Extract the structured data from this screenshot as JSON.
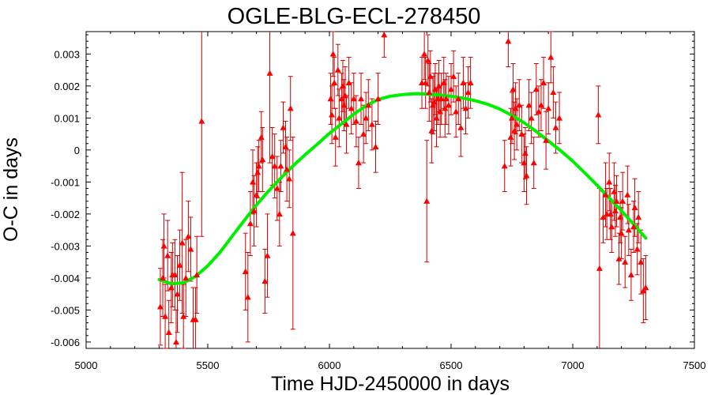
{
  "chart_data": {
    "type": "scatter",
    "title": "OGLE-BLG-ECL-278450",
    "xlabel": "Time HJD-2450000 in days",
    "ylabel": "O-C in days",
    "xlim": [
      5000,
      7500
    ],
    "ylim": [
      -0.0062,
      0.0037
    ],
    "x_ticks": [
      5000,
      5500,
      6000,
      6500,
      7000,
      7500
    ],
    "x_tick_labels": [
      "5000",
      "5500",
      "6000",
      "6500",
      "7000",
      "7500"
    ],
    "y_ticks": [
      -0.006,
      -0.005,
      -0.004,
      -0.003,
      -0.002,
      -0.001,
      0,
      0.001,
      0.002,
      0.003
    ],
    "y_tick_labels": [
      "-0.006",
      "-0.005",
      "-0.004",
      "-0.003",
      "-0.002",
      "-0.001",
      "0",
      "0.001",
      "0.002",
      "0.003"
    ],
    "grid": false,
    "colors": {
      "points": "#ff0000",
      "errorbars": "#cc0000",
      "fit": "#00ee00"
    },
    "series": [
      {
        "kind": "points_with_errorbars",
        "points": [
          {
            "x": 5305,
            "y": -0.0049,
            "err": 0.0012
          },
          {
            "x": 5315,
            "y": -0.004,
            "err": 0.0012
          },
          {
            "x": 5320,
            "y": -0.003,
            "err": 0.001
          },
          {
            "x": 5325,
            "y": -0.0052,
            "err": 0.001
          },
          {
            "x": 5335,
            "y": -0.0033,
            "err": 0.0011
          },
          {
            "x": 5340,
            "y": -0.0057,
            "err": 0.001
          },
          {
            "x": 5350,
            "y": -0.0043,
            "err": 0.0011
          },
          {
            "x": 5355,
            "y": -0.0039,
            "err": 0.001
          },
          {
            "x": 5365,
            "y": -0.0039,
            "err": 0.0011
          },
          {
            "x": 5370,
            "y": -0.006,
            "err": 0.001
          },
          {
            "x": 5375,
            "y": -0.0045,
            "err": 0.0012
          },
          {
            "x": 5385,
            "y": -0.0036,
            "err": 0.0011
          },
          {
            "x": 5395,
            "y": -0.0029,
            "err": 0.0022
          },
          {
            "x": 5400,
            "y": -0.0052,
            "err": 0.001
          },
          {
            "x": 5410,
            "y": -0.004,
            "err": 0.0012
          },
          {
            "x": 5420,
            "y": -0.0027,
            "err": 0.0011
          },
          {
            "x": 5430,
            "y": -0.0031,
            "err": 0.001
          },
          {
            "x": 5440,
            "y": -0.0053,
            "err": 0.001
          },
          {
            "x": 5450,
            "y": -0.0053,
            "err": 0.001
          },
          {
            "x": 5455,
            "y": -0.0039,
            "err": 0.0012
          },
          {
            "x": 5475,
            "y": 0.0009,
            "err": 0.0036
          },
          {
            "x": 5655,
            "y": -0.0038,
            "err": 0.0012
          },
          {
            "x": 5665,
            "y": -0.0046,
            "err": 0.0014
          },
          {
            "x": 5675,
            "y": -0.0023,
            "err": 0.001
          },
          {
            "x": 5685,
            "y": -0.001,
            "err": 0.001
          },
          {
            "x": 5690,
            "y": -0.0019,
            "err": 0.0011
          },
          {
            "x": 5700,
            "y": -0.0014,
            "err": 0.001
          },
          {
            "x": 5705,
            "y": -0.0007,
            "err": 0.0008
          },
          {
            "x": 5710,
            "y": -0.0005,
            "err": 0.0008
          },
          {
            "x": 5720,
            "y": 0.0004,
            "err": 0.0008
          },
          {
            "x": 5725,
            "y": -0.0003,
            "err": 0.001
          },
          {
            "x": 5735,
            "y": -0.0041,
            "err": 0.001
          },
          {
            "x": 5745,
            "y": -0.0033,
            "err": 0.0013
          },
          {
            "x": 5755,
            "y": 0.0024,
            "err": 0.0028
          },
          {
            "x": 5765,
            "y": -0.0002,
            "err": 0.0009
          },
          {
            "x": 5775,
            "y": -0.0005,
            "err": 0.001
          },
          {
            "x": 5785,
            "y": -0.0012,
            "err": 0.001
          },
          {
            "x": 5795,
            "y": -0.002,
            "err": 0.001
          },
          {
            "x": 5800,
            "y": -0.0005,
            "err": 0.0008
          },
          {
            "x": 5810,
            "y": 0.0007,
            "err": 0.0008
          },
          {
            "x": 5820,
            "y": 0.0001,
            "err": 0.0008
          },
          {
            "x": 5825,
            "y": -0.0006,
            "err": 0.001
          },
          {
            "x": 5835,
            "y": -0.0009,
            "err": 0.0009
          },
          {
            "x": 5840,
            "y": 0.0013,
            "err": 0.001
          },
          {
            "x": 5850,
            "y": -0.0026,
            "err": 0.003
          },
          {
            "x": 6005,
            "y": 0.0016,
            "err": 0.0008
          },
          {
            "x": 6010,
            "y": 0.0011,
            "err": 0.0009
          },
          {
            "x": 6015,
            "y": 0.003,
            "err": 0.0007
          },
          {
            "x": 6020,
            "y": 0.0021,
            "err": 0.0008
          },
          {
            "x": 6025,
            "y": 0.0004,
            "err": 0.0009
          },
          {
            "x": 6035,
            "y": 0.0025,
            "err": 0.0008
          },
          {
            "x": 6040,
            "y": 0.001,
            "err": 0.0009
          },
          {
            "x": 6050,
            "y": 0.0016,
            "err": 0.0008
          },
          {
            "x": 6055,
            "y": 0.002,
            "err": 0.0008
          },
          {
            "x": 6060,
            "y": 0.0014,
            "err": 0.0008
          },
          {
            "x": 6065,
            "y": 0.0017,
            "err": 0.0009
          },
          {
            "x": 6070,
            "y": 0.0008,
            "err": 0.0009
          },
          {
            "x": 6080,
            "y": 0.0021,
            "err": 0.0008
          },
          {
            "x": 6090,
            "y": 0.0013,
            "err": 0.0008
          },
          {
            "x": 6100,
            "y": 0.0016,
            "err": 0.0008
          },
          {
            "x": 6110,
            "y": 0.0009,
            "err": 0.0008
          },
          {
            "x": 6120,
            "y": -0.0004,
            "err": 0.0008
          },
          {
            "x": 6130,
            "y": 0.0016,
            "err": 0.0008
          },
          {
            "x": 6140,
            "y": 0.0005,
            "err": 0.0009
          },
          {
            "x": 6150,
            "y": 0.001,
            "err": 0.0008
          },
          {
            "x": 6160,
            "y": 0.0014,
            "err": 0.0008
          },
          {
            "x": 6175,
            "y": 0.0008,
            "err": 0.0008
          },
          {
            "x": 6190,
            "y": 0.0001,
            "err": 0.0008
          },
          {
            "x": 6200,
            "y": 0.0016,
            "err": 0.0008
          },
          {
            "x": 6225,
            "y": 0.0036,
            "err": 0.0007
          },
          {
            "x": 6380,
            "y": 0.0021,
            "err": 0.0008
          },
          {
            "x": 6390,
            "y": 0.003,
            "err": 0.0008
          },
          {
            "x": 6395,
            "y": 0.0021,
            "err": 0.0008
          },
          {
            "x": 6400,
            "y": -0.0016,
            "err": 0.0019
          },
          {
            "x": 6405,
            "y": 0.0028,
            "err": 0.0008
          },
          {
            "x": 6410,
            "y": 0.0018,
            "err": 0.0009
          },
          {
            "x": 6415,
            "y": 0.0023,
            "err": 0.0008
          },
          {
            "x": 6420,
            "y": 0.0006,
            "err": 0.001
          },
          {
            "x": 6425,
            "y": 0.0014,
            "err": 0.0009
          },
          {
            "x": 6430,
            "y": 0.0015,
            "err": 0.0009
          },
          {
            "x": 6435,
            "y": 0.0019,
            "err": 0.0008
          },
          {
            "x": 6440,
            "y": 0.001,
            "err": 0.0009
          },
          {
            "x": 6445,
            "y": 0.0016,
            "err": 0.0008
          },
          {
            "x": 6450,
            "y": 0.002,
            "err": 0.0008
          },
          {
            "x": 6455,
            "y": 0.0012,
            "err": 0.0008
          },
          {
            "x": 6460,
            "y": 0.0016,
            "err": 0.0008
          },
          {
            "x": 6470,
            "y": 0.0021,
            "err": 0.0008
          },
          {
            "x": 6475,
            "y": 0.0013,
            "err": 0.0009
          },
          {
            "x": 6480,
            "y": 0.0016,
            "err": 0.0008
          },
          {
            "x": 6490,
            "y": 0.0014,
            "err": 0.0009
          },
          {
            "x": 6500,
            "y": 0.0019,
            "err": 0.0008
          },
          {
            "x": 6510,
            "y": 0.0023,
            "err": 0.0008
          },
          {
            "x": 6520,
            "y": 0.0012,
            "err": 0.0008
          },
          {
            "x": 6530,
            "y": 0.0016,
            "err": 0.0008
          },
          {
            "x": 6540,
            "y": 0.0007,
            "err": 0.0009
          },
          {
            "x": 6550,
            "y": 0.0021,
            "err": 0.0008
          },
          {
            "x": 6560,
            "y": 0.0013,
            "err": 0.0008
          },
          {
            "x": 6570,
            "y": 0.0018,
            "err": 0.0008
          },
          {
            "x": 6580,
            "y": 0.0021,
            "err": 0.0008
          },
          {
            "x": 6720,
            "y": -0.0005,
            "err": 0.0008
          },
          {
            "x": 6735,
            "y": 0.0034,
            "err": 0.0008
          },
          {
            "x": 6745,
            "y": 0.0004,
            "err": 0.0009
          },
          {
            "x": 6750,
            "y": 0.001,
            "err": 0.0008
          },
          {
            "x": 6755,
            "y": 0.0019,
            "err": 0.0008
          },
          {
            "x": 6760,
            "y": 0.0006,
            "err": 0.0009
          },
          {
            "x": 6765,
            "y": 0.0013,
            "err": 0.0008
          },
          {
            "x": 6770,
            "y": 0.0008,
            "err": 0.0008
          },
          {
            "x": 6780,
            "y": 0.0014,
            "err": 0.0008
          },
          {
            "x": 6790,
            "y": 0.0005,
            "err": 0.0009
          },
          {
            "x": 6800,
            "y": -0.0004,
            "err": 0.0009
          },
          {
            "x": 6805,
            "y": -0.0001,
            "err": 0.0008
          },
          {
            "x": 6810,
            "y": -0.0008,
            "err": 0.0009
          },
          {
            "x": 6820,
            "y": 0.0014,
            "err": 0.0008
          },
          {
            "x": 6830,
            "y": 0.001,
            "err": 0.0008
          },
          {
            "x": 6840,
            "y": -0.0004,
            "err": 0.0008
          },
          {
            "x": 6850,
            "y": 0.0019,
            "err": 0.0008
          },
          {
            "x": 6860,
            "y": 0.0012,
            "err": 0.0008
          },
          {
            "x": 6870,
            "y": 0.0014,
            "err": 0.0008
          },
          {
            "x": 6880,
            "y": 0.0021,
            "err": 0.0008
          },
          {
            "x": 6890,
            "y": 0.0003,
            "err": 0.0009
          },
          {
            "x": 6900,
            "y": 0.0013,
            "err": 0.0008
          },
          {
            "x": 6910,
            "y": 0.0029,
            "err": 0.0008
          },
          {
            "x": 6920,
            "y": 0.0018,
            "err": 0.0008
          },
          {
            "x": 6930,
            "y": 0.0007,
            "err": 0.0008
          },
          {
            "x": 6945,
            "y": 0.001,
            "err": 0.0008
          },
          {
            "x": 7105,
            "y": 0.0011,
            "err": 0.0009
          },
          {
            "x": 7110,
            "y": -0.0037,
            "err": 0.0025
          },
          {
            "x": 7125,
            "y": -0.0021,
            "err": 0.0008
          },
          {
            "x": 7135,
            "y": -0.0014,
            "err": 0.001
          },
          {
            "x": 7140,
            "y": -0.002,
            "err": 0.0008
          },
          {
            "x": 7150,
            "y": -0.001,
            "err": 0.0009
          },
          {
            "x": 7155,
            "y": -0.002,
            "err": 0.0008
          },
          {
            "x": 7160,
            "y": -0.0024,
            "err": 0.0008
          },
          {
            "x": 7170,
            "y": -0.0013,
            "err": 0.0009
          },
          {
            "x": 7175,
            "y": -0.0019,
            "err": 0.0008
          },
          {
            "x": 7180,
            "y": -0.0016,
            "err": 0.0008
          },
          {
            "x": 7190,
            "y": -0.0034,
            "err": 0.0008
          },
          {
            "x": 7195,
            "y": -0.0021,
            "err": 0.0008
          },
          {
            "x": 7200,
            "y": -0.0026,
            "err": 0.0008
          },
          {
            "x": 7205,
            "y": -0.0016,
            "err": 0.0009
          },
          {
            "x": 7215,
            "y": -0.0035,
            "err": 0.0008
          },
          {
            "x": 7225,
            "y": -0.0014,
            "err": 0.0009
          },
          {
            "x": 7230,
            "y": -0.0025,
            "err": 0.0008
          },
          {
            "x": 7240,
            "y": -0.0039,
            "err": 0.0008
          },
          {
            "x": 7250,
            "y": -0.0024,
            "err": 0.0008
          },
          {
            "x": 7255,
            "y": -0.0018,
            "err": 0.0009
          },
          {
            "x": 7265,
            "y": -0.0031,
            "err": 0.0008
          },
          {
            "x": 7270,
            "y": -0.0021,
            "err": 0.0008
          },
          {
            "x": 7280,
            "y": -0.0035,
            "err": 0.001
          },
          {
            "x": 7290,
            "y": -0.0044,
            "err": 0.001
          },
          {
            "x": 7300,
            "y": -0.0043,
            "err": 0.001
          }
        ]
      },
      {
        "kind": "fit_curve",
        "x": [
          5300,
          5350,
          5400,
          5450,
          5500,
          5550,
          5600,
          5650,
          5700,
          5750,
          5800,
          5850,
          5900,
          5950,
          6000,
          6050,
          6100,
          6150,
          6200,
          6250,
          6300,
          6350,
          6400,
          6450,
          6500,
          6550,
          6600,
          6650,
          6700,
          6750,
          6800,
          6850,
          6900,
          6950,
          7000,
          7050,
          7100,
          7150,
          7200,
          7250,
          7300
        ],
        "y": [
          -0.00405,
          -0.00418,
          -0.00415,
          -0.00395,
          -0.00362,
          -0.0032,
          -0.0027,
          -0.0022,
          -0.00172,
          -0.00128,
          -0.00088,
          -0.0005,
          -0.00015,
          0.00018,
          0.00052,
          0.00082,
          0.00112,
          0.00138,
          0.00158,
          0.00168,
          0.00173,
          0.00176,
          0.00175,
          0.00172,
          0.00168,
          0.00162,
          0.00154,
          0.00143,
          0.00128,
          0.00108,
          0.00085,
          0.00058,
          0.00028,
          -2e-05,
          -0.00035,
          -0.00072,
          -0.0011,
          -0.0015,
          -0.0019,
          -0.00232,
          -0.00275
        ]
      }
    ]
  }
}
